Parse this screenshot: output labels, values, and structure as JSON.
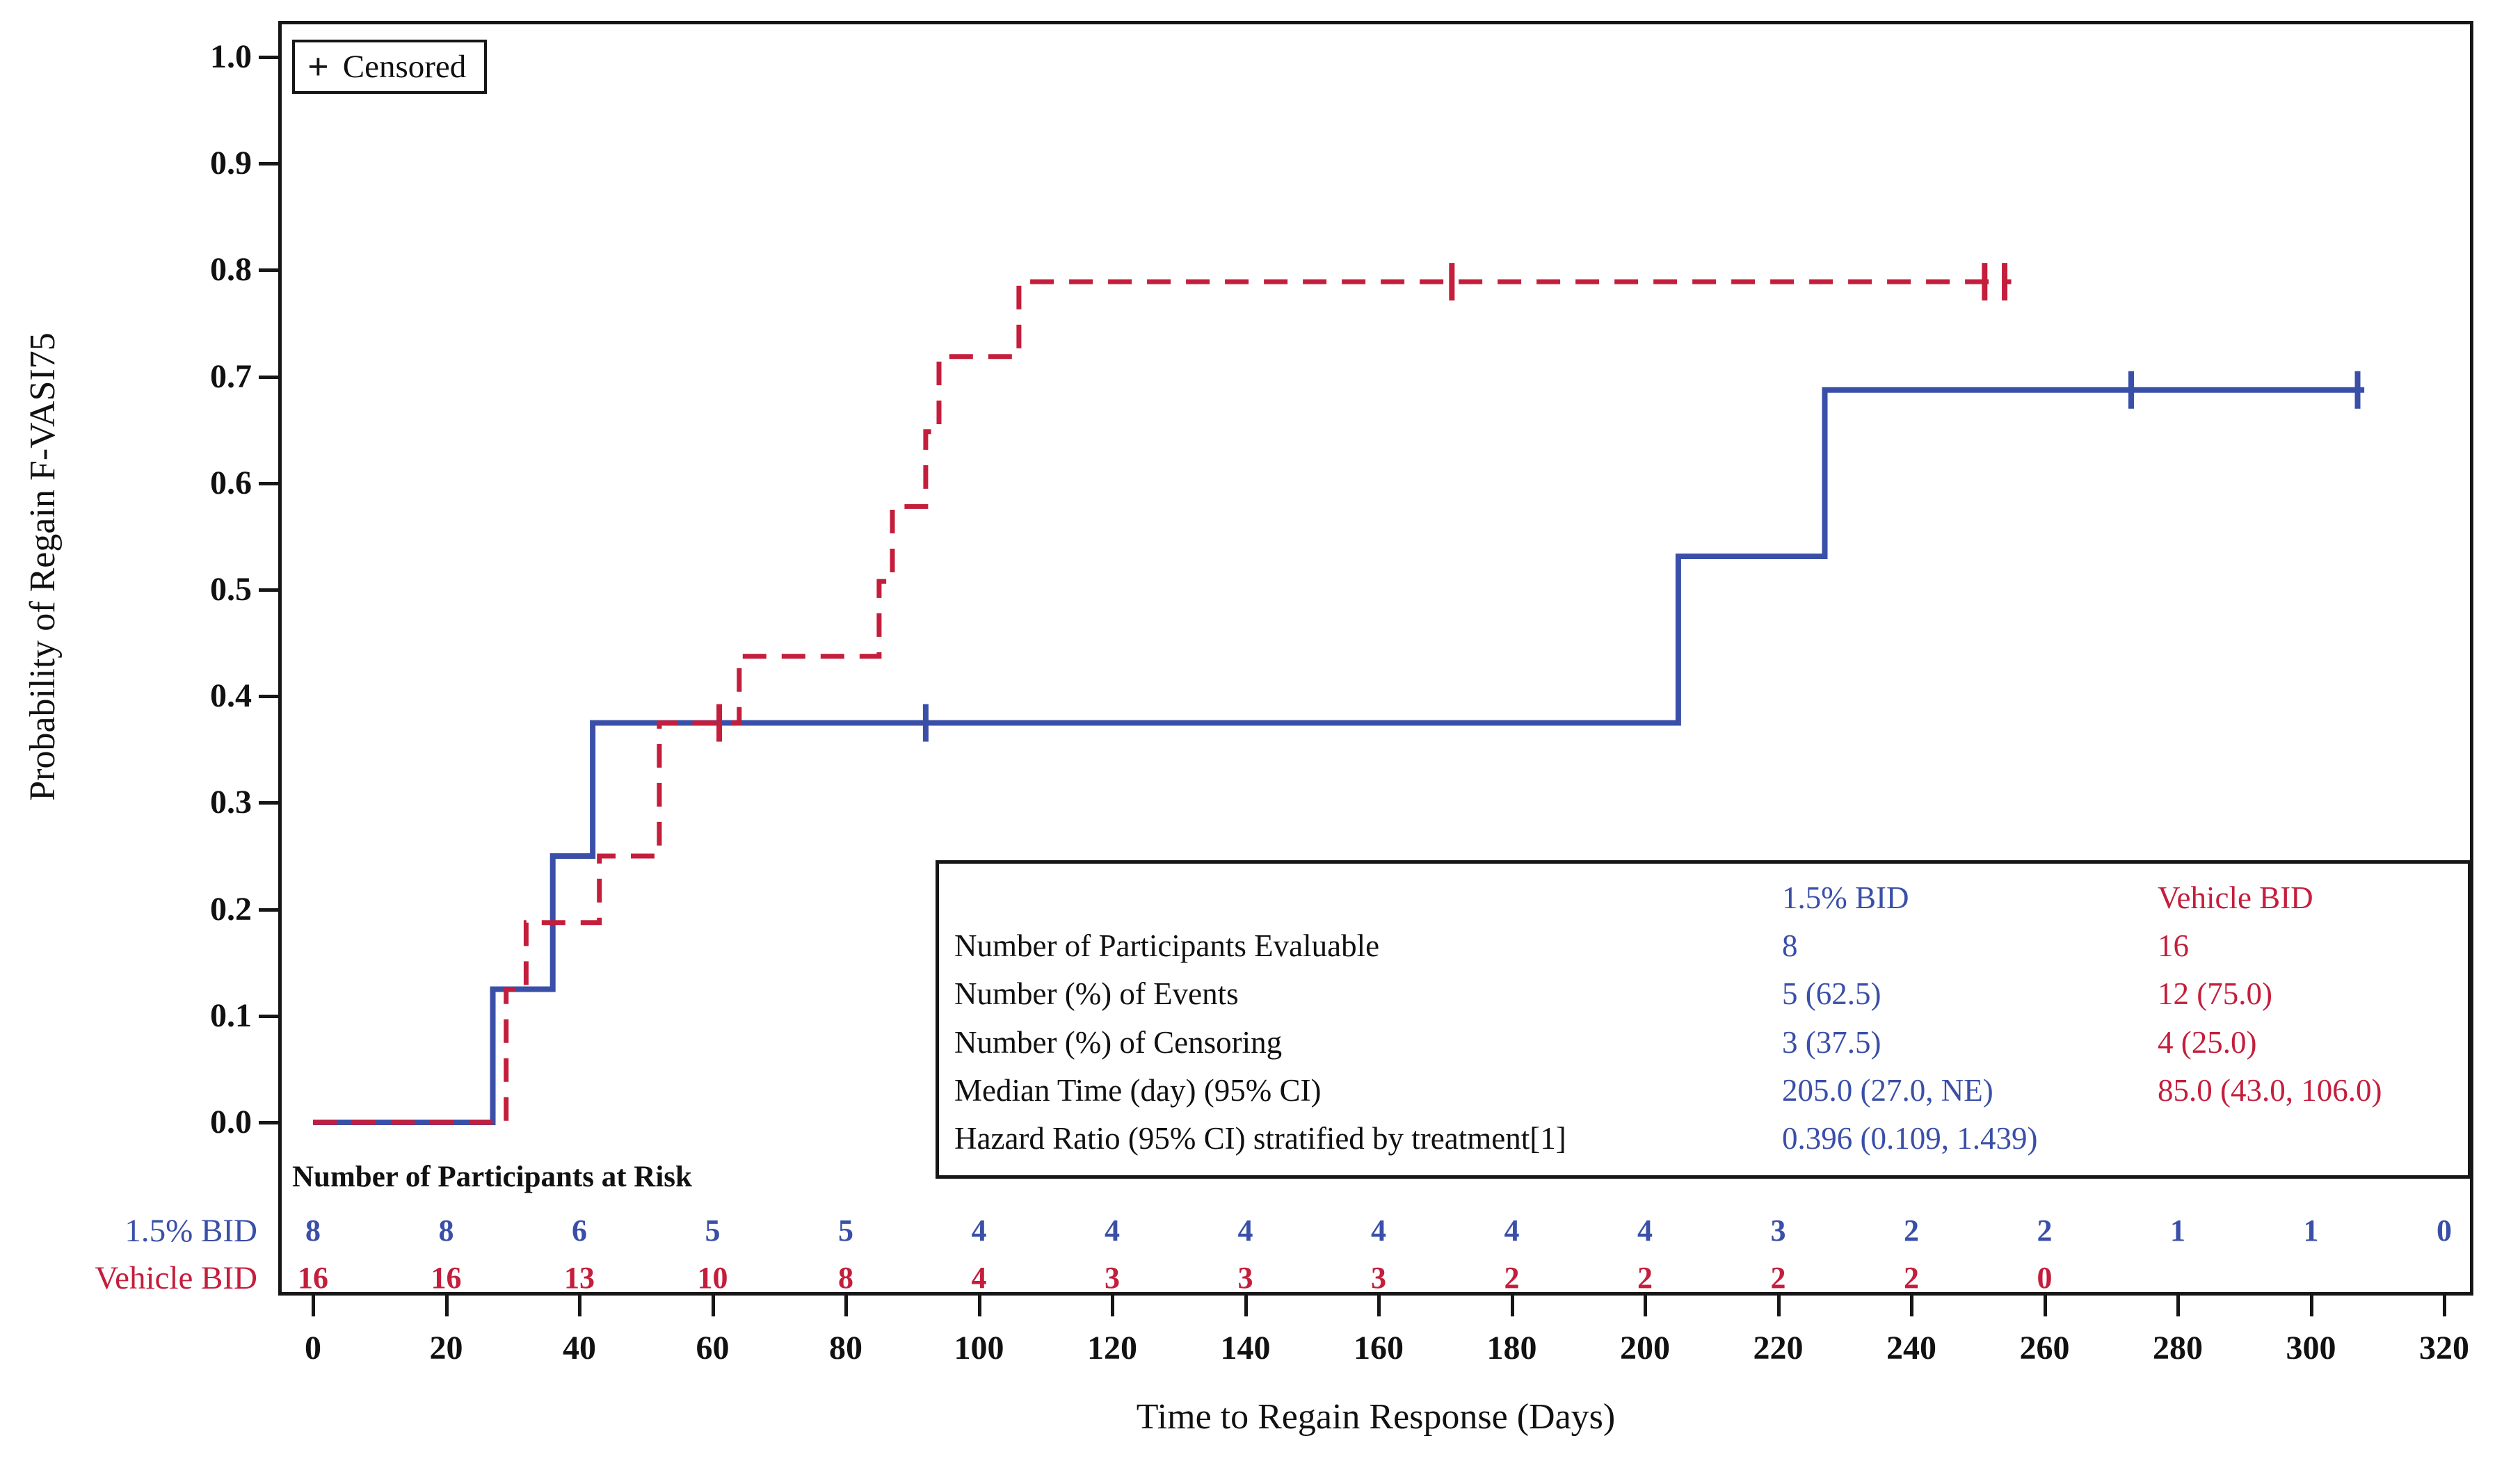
{
  "colors": {
    "blue": "#3A4FA8",
    "red": "#C41E3C",
    "axis": "#161616",
    "background": "#ffffff"
  },
  "legend": {
    "symbol": "+",
    "label": "Censored"
  },
  "y_axis": {
    "title": "Probability of Regain F-VASI75",
    "tick_labels": [
      "1.0",
      "0.9",
      "0.8",
      "0.7",
      "0.6",
      "0.5",
      "0.4",
      "0.3",
      "0.2",
      "0.1",
      "0.0"
    ]
  },
  "x_axis": {
    "title": "Time to Regain Response (Days)",
    "tick_labels": [
      "0",
      "20",
      "40",
      "60",
      "80",
      "100",
      "120",
      "140",
      "160",
      "180",
      "200",
      "220",
      "240",
      "260",
      "280",
      "300",
      "320"
    ]
  },
  "chart_data": {
    "type": "line",
    "subtype": "kaplan-meier-step",
    "xlabel": "Time to Regain Response (Days)",
    "ylabel": "Probability of Regain F-VASI75",
    "xlim": [
      0,
      320
    ],
    "ylim": [
      0.0,
      1.0
    ],
    "x_ticks": [
      0,
      20,
      40,
      60,
      80,
      100,
      120,
      140,
      160,
      180,
      200,
      220,
      240,
      260,
      280,
      300,
      320
    ],
    "y_ticks": [
      0.0,
      0.1,
      0.2,
      0.3,
      0.4,
      0.5,
      0.6,
      0.7,
      0.8,
      0.9,
      1.0
    ],
    "grid": false,
    "legend_position": "top-left",
    "series": [
      {
        "name": "1.5% BID",
        "color": "#3A4FA8",
        "style": "solid",
        "steps": [
          [
            0,
            0
          ],
          [
            27,
            0
          ],
          [
            27,
            0.125
          ],
          [
            36,
            0.125
          ],
          [
            36,
            0.25
          ],
          [
            42,
            0.25
          ],
          [
            42,
            0.375
          ],
          [
            205,
            0.375
          ],
          [
            205,
            0.5313
          ],
          [
            227,
            0.5313
          ],
          [
            227,
            0.6875
          ],
          [
            308,
            0.6875
          ]
        ],
        "censor_marks": [
          [
            92,
            0.375
          ],
          [
            273,
            0.6875
          ],
          [
            307,
            0.6875
          ]
        ]
      },
      {
        "name": "Vehicle BID",
        "color": "#C41E3C",
        "style": "dashed",
        "steps": [
          [
            0,
            0
          ],
          [
            29,
            0
          ],
          [
            29,
            0.125
          ],
          [
            32,
            0.125
          ],
          [
            32,
            0.1875
          ],
          [
            43,
            0.1875
          ],
          [
            43,
            0.25
          ],
          [
            52,
            0.25
          ],
          [
            52,
            0.375
          ],
          [
            64,
            0.375
          ],
          [
            64,
            0.4375
          ],
          [
            85,
            0.4375
          ],
          [
            85,
            0.5078
          ],
          [
            87,
            0.5078
          ],
          [
            87,
            0.5781
          ],
          [
            92,
            0.5781
          ],
          [
            92,
            0.6484
          ],
          [
            94,
            0.6484
          ],
          [
            94,
            0.7188
          ],
          [
            106,
            0.7188
          ],
          [
            106,
            0.7891
          ],
          [
            255,
            0.7891
          ]
        ],
        "censor_marks": [
          [
            61,
            0.375
          ],
          [
            171,
            0.7891
          ],
          [
            251,
            0.7891
          ],
          [
            254,
            0.7891
          ]
        ]
      }
    ]
  },
  "stats_table": {
    "headers": [
      "",
      "1.5% BID",
      "Vehicle BID"
    ],
    "rows": [
      {
        "label": "Number of Participants Evaluable",
        "blue": "8",
        "red": "16"
      },
      {
        "label": "Number (%) of Events",
        "blue": "5 (62.5)",
        "red": "12 (75.0)"
      },
      {
        "label": "Number (%) of Censoring",
        "blue": "3 (37.5)",
        "red": "4 (25.0)"
      },
      {
        "label": "Median Time (day) (95% CI)",
        "blue": "205.0 (27.0, NE)",
        "red": "85.0 (43.0, 106.0)"
      },
      {
        "label": "Hazard Ratio (95% CI) stratified by treatment[1]",
        "blue": "0.396 (0.109, 1.439)",
        "red": ""
      }
    ]
  },
  "risk_table": {
    "title": "Number of Participants at Risk",
    "rows": [
      {
        "label": "1.5% BID",
        "color": "#3A4FA8",
        "days": [
          0,
          20,
          40,
          60,
          80,
          100,
          120,
          140,
          160,
          180,
          200,
          220,
          240,
          260,
          280,
          300,
          320
        ],
        "values": [
          "8",
          "8",
          "6",
          "5",
          "5",
          "4",
          "4",
          "4",
          "4",
          "4",
          "4",
          "3",
          "2",
          "2",
          "1",
          "1",
          "0"
        ]
      },
      {
        "label": "Vehicle BID",
        "color": "#C41E3C",
        "days": [
          0,
          20,
          40,
          60,
          80,
          100,
          120,
          140,
          160,
          180,
          200,
          220,
          240,
          260
        ],
        "values": [
          "16",
          "16",
          "13",
          "10",
          "8",
          "4",
          "3",
          "3",
          "3",
          "2",
          "2",
          "2",
          "2",
          "0"
        ]
      }
    ]
  }
}
